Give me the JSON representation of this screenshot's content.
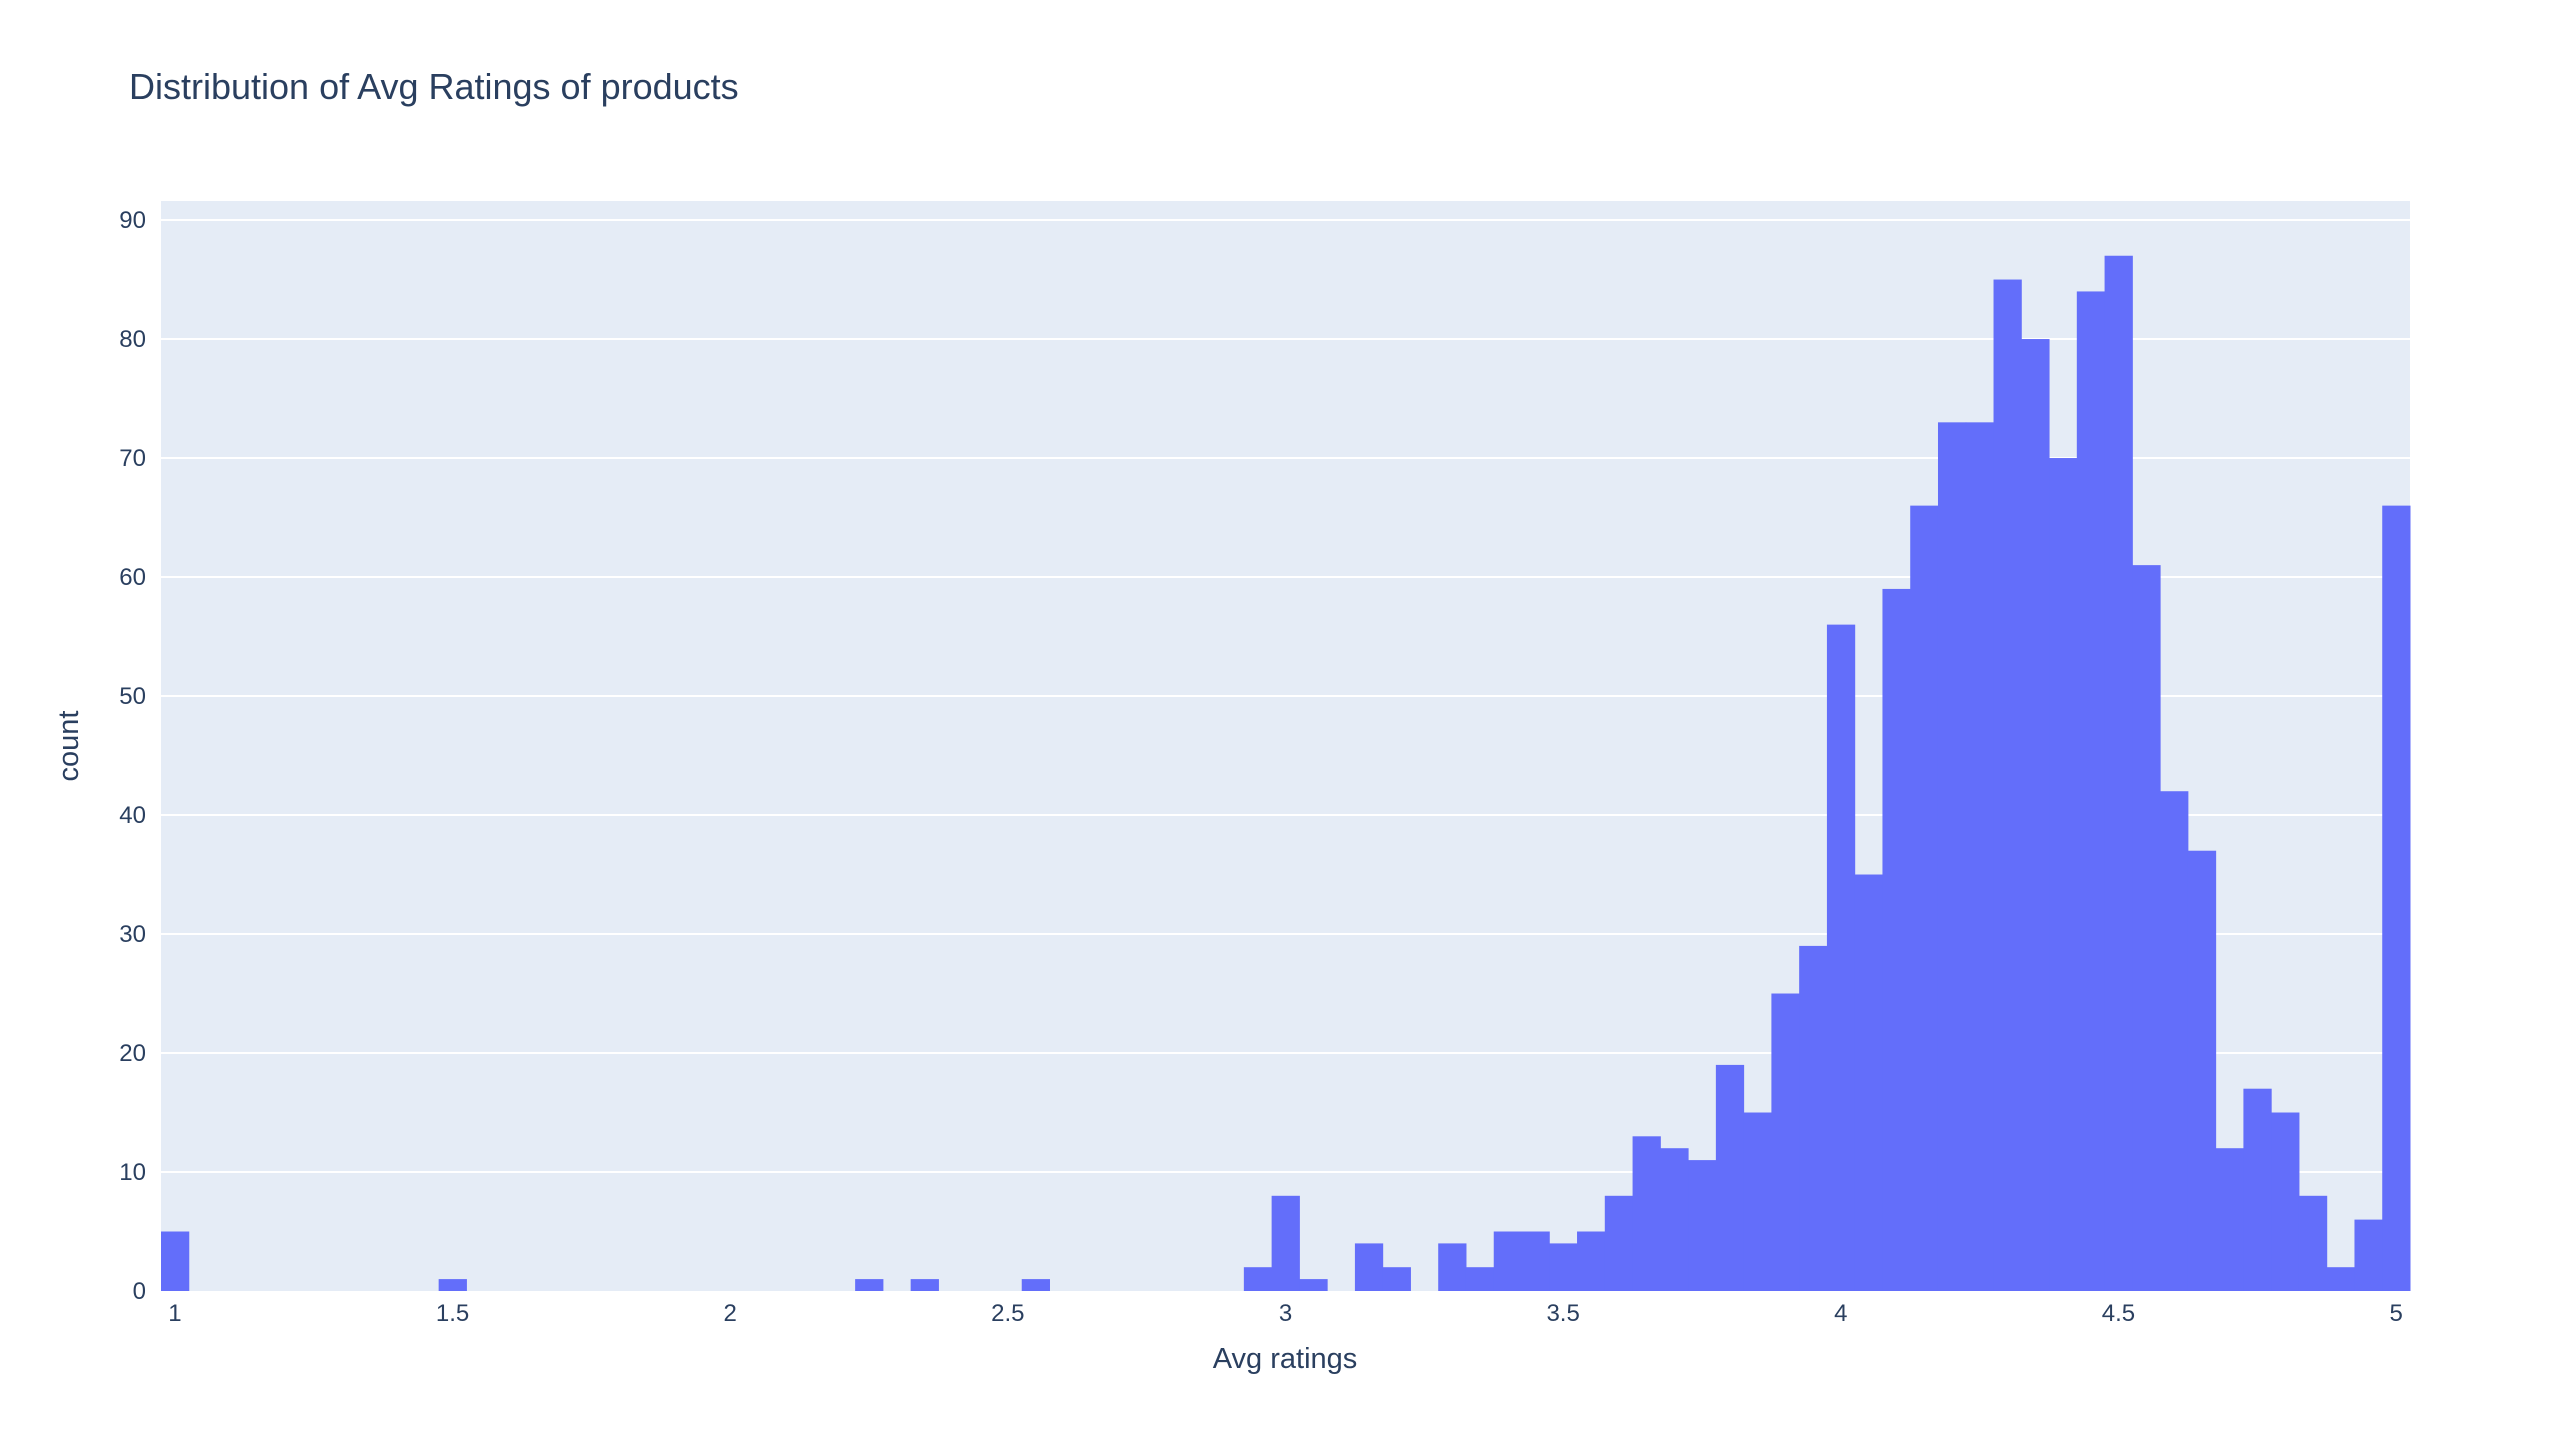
{
  "chart_data": {
    "type": "bar",
    "title": "Distribution of Avg Ratings of products",
    "xlabel": "Avg ratings",
    "ylabel": "count",
    "xlim": [
      0.975,
      5.025
    ],
    "ylim": [
      0,
      91.6
    ],
    "xticks": [
      1,
      1.5,
      2,
      2.5,
      3,
      3.5,
      4,
      4.5,
      5
    ],
    "xtick_labels": [
      "1",
      "1.5",
      "2",
      "2.5",
      "3",
      "3.5",
      "4",
      "4.5",
      "5"
    ],
    "yticks": [
      0,
      10,
      20,
      30,
      40,
      50,
      60,
      70,
      80,
      90
    ],
    "ytick_labels": [
      "0",
      "10",
      "20",
      "30",
      "40",
      "50",
      "60",
      "70",
      "80",
      "90"
    ],
    "bin_start": 0.975,
    "bin_width": 0.05,
    "grid": true,
    "colors": {
      "bar": "#636efa",
      "plot_bg": "#e5ecf6",
      "text": "#2a3f5f",
      "grid": "#ffffff"
    },
    "values": [
      5,
      0,
      0,
      0,
      0,
      0,
      0,
      0,
      0,
      0,
      1,
      0,
      0,
      0,
      0,
      0,
      0,
      0,
      0,
      0,
      0,
      0,
      0,
      0,
      0,
      1,
      0,
      1,
      0,
      0,
      0,
      1,
      0,
      0,
      0,
      0,
      0,
      0,
      0,
      2,
      8,
      1,
      0,
      4,
      2,
      0,
      4,
      2,
      5,
      5,
      4,
      5,
      8,
      13,
      12,
      11,
      19,
      15,
      25,
      29,
      56,
      35,
      59,
      66,
      73,
      73,
      85,
      80,
      70,
      84,
      87,
      61,
      42,
      37,
      12,
      17,
      15,
      8,
      2,
      6,
      66
    ]
  }
}
